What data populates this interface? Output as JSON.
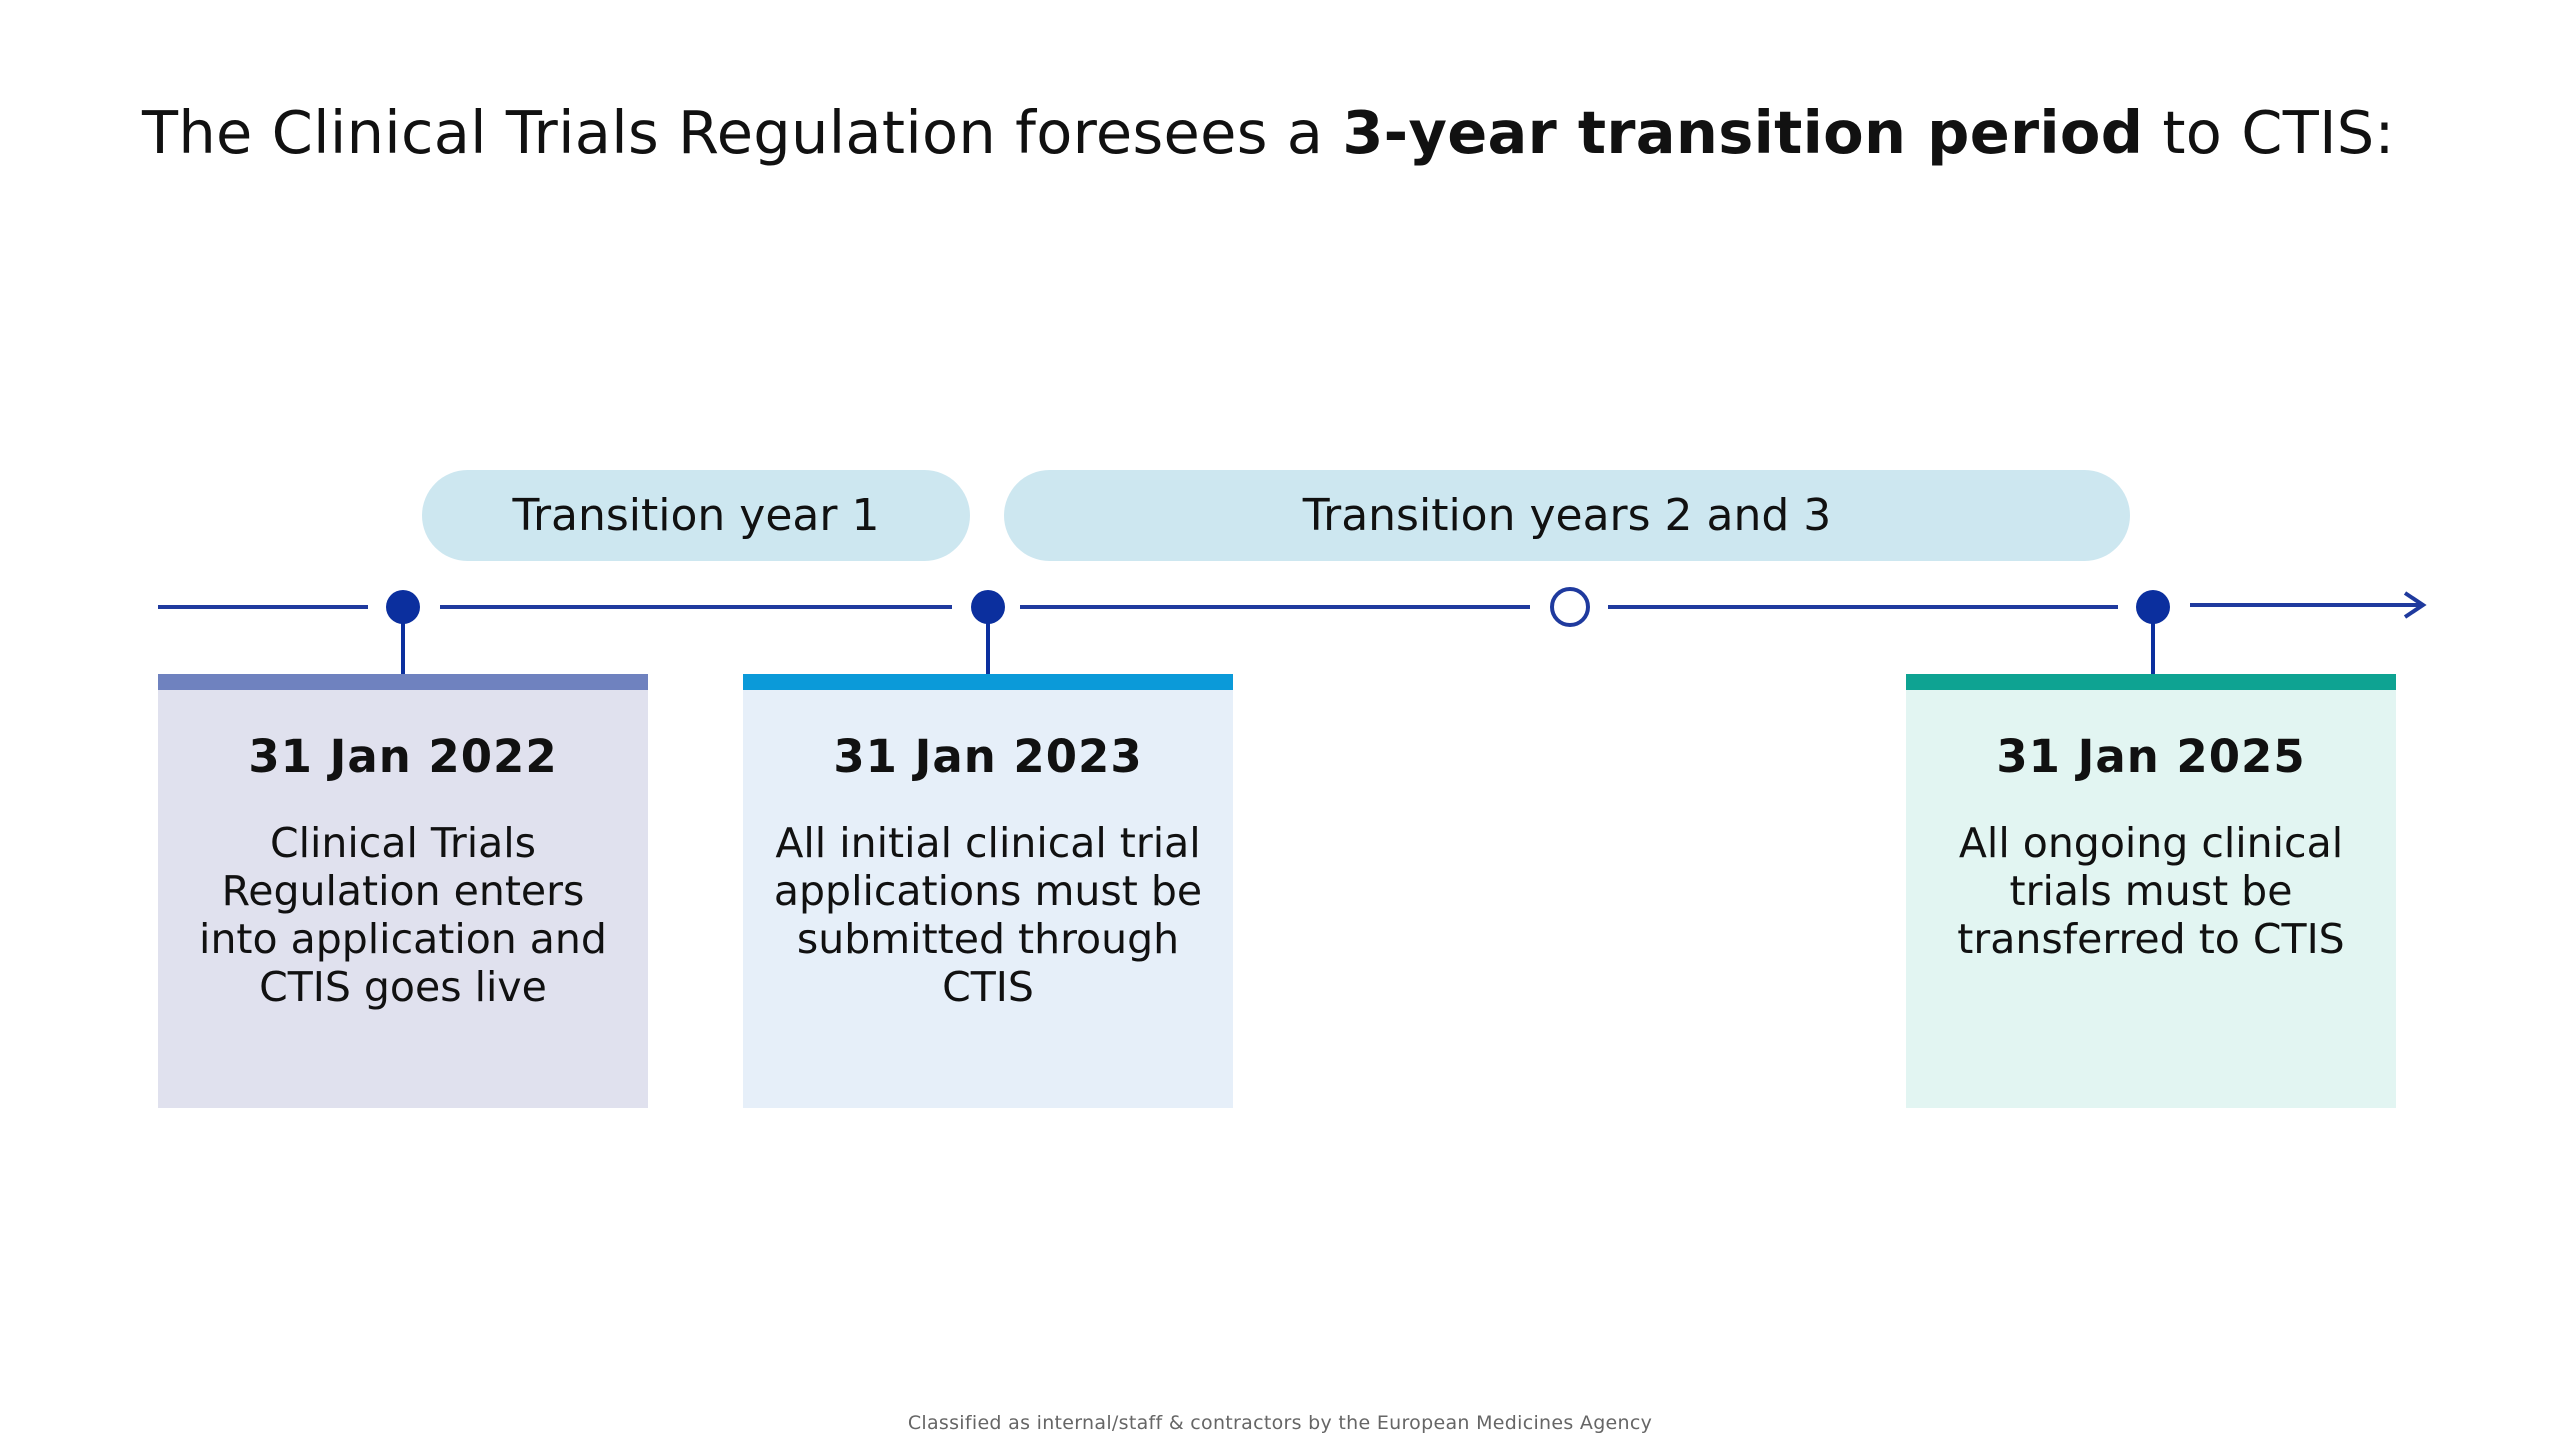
{
  "headline": {
    "prefix": "The Clinical Trials Regulation foresees a ",
    "emphasis": "3-year transition period",
    "suffix": " to CTIS:"
  },
  "periods": [
    {
      "label": "Transition year 1"
    },
    {
      "label": "Transition years 2 and 3"
    }
  ],
  "milestones": [
    {
      "date": "31 Jan 2022",
      "description": "Clinical Trials Regulation enters into application and CTIS goes live",
      "accent": "#6f82bf",
      "background": "#e0e1ee"
    },
    {
      "date": "31 Jan 2023",
      "description": "All initial clinical trial applications must be submitted through CTIS",
      "accent": "#0b9ad9",
      "background": "#e6eff9"
    },
    {
      "date": "31 Jan 2025",
      "description": "All ongoing clinical trials must be transferred to CTIS",
      "accent": "#0ea392",
      "background": "#e2f5f2"
    }
  ],
  "colors": {
    "timeline": "#1f3a9e",
    "marker": "#0b2f9e",
    "pill": "#cde7f0"
  },
  "footer": "Classified as internal/staff & contractors by the European Medicines Agency"
}
